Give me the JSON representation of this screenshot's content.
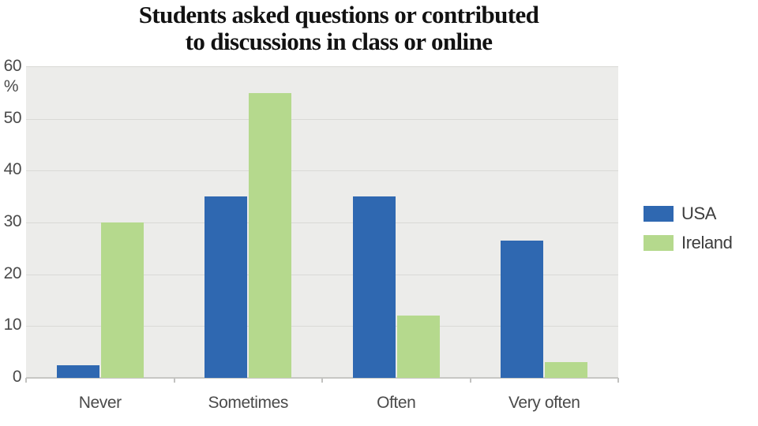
{
  "title": {
    "line1": "Students asked questions or contributed",
    "line2": "to discussions in class or online"
  },
  "chart_data": {
    "type": "bar",
    "title": "Students asked questions or contributed to discussions in class or online",
    "categories": [
      "Never",
      "Sometimes",
      "Often",
      "Very often"
    ],
    "series": [
      {
        "name": "USA",
        "color": "#2f68b1",
        "values": [
          2.5,
          35,
          35,
          26.5
        ]
      },
      {
        "name": "Ireland",
        "color": "#b5d98d",
        "values": [
          30,
          55,
          12,
          3
        ]
      }
    ],
    "xlabel": "",
    "ylabel": "%",
    "ylim": [
      0,
      60
    ],
    "yticks": [
      0,
      10,
      20,
      30,
      40,
      50,
      60
    ],
    "grid": true,
    "legend_position": "right",
    "colors": {
      "plot_background": "#ececea",
      "gridline": "#d9d9d6",
      "axis_line": "#c7c7c4",
      "tick": "#c2c2c0",
      "axis_text": "#4a4a4a",
      "legend_text": "#3d3d3d",
      "title_text": "#121212",
      "page_background": "#ffffff"
    }
  }
}
